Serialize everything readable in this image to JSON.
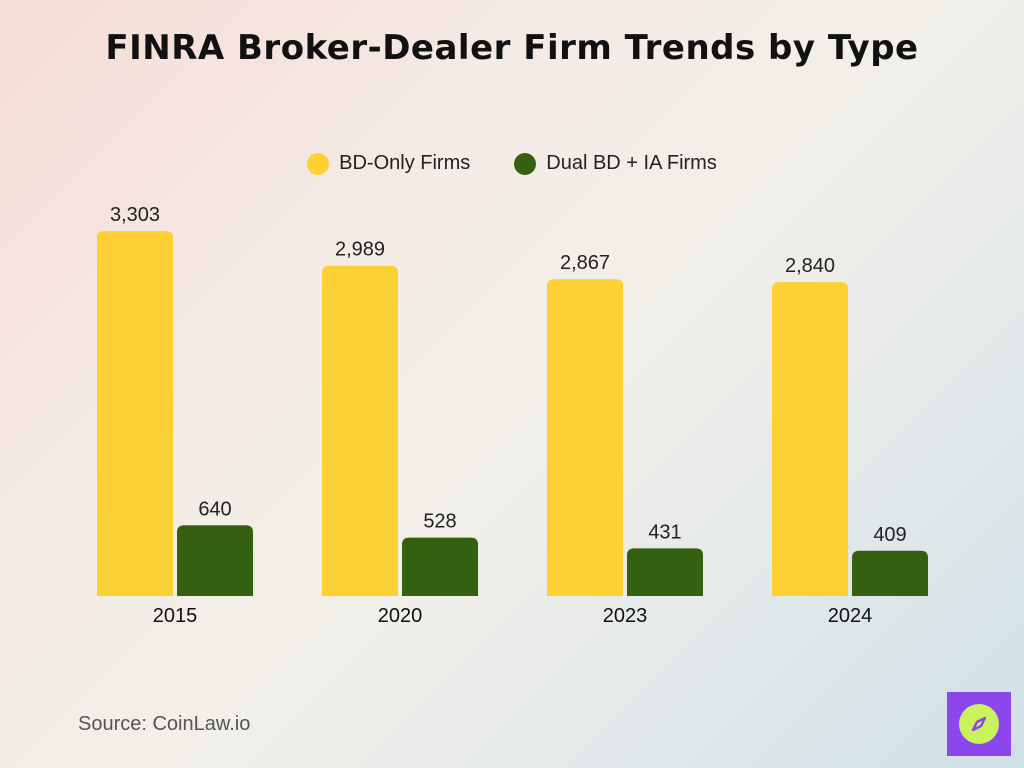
{
  "colors": {
    "bd_only": "#fdd133",
    "dual": "#34610f",
    "logo_bg": "#8b46ee",
    "logo_circle": "#c9f25c"
  },
  "chart_data": {
    "type": "bar",
    "title": "FINRA Broker-Dealer Firm Trends by Type",
    "categories": [
      "2015",
      "2020",
      "2023",
      "2024"
    ],
    "series": [
      {
        "name": "BD-Only Firms",
        "values": [
          3303,
          2989,
          2867,
          2840
        ],
        "labels": [
          "3,303",
          "2,989",
          "2,867",
          "2,840"
        ]
      },
      {
        "name": "Dual BD + IA Firms",
        "values": [
          640,
          528,
          431,
          409
        ],
        "labels": [
          "640",
          "528",
          "431",
          "409"
        ]
      }
    ],
    "legend_position": "top-center",
    "grid": false,
    "ylim": [
      0,
      3303
    ]
  },
  "source": "Source: CoinLaw.io",
  "logo_icon": "compass-icon"
}
